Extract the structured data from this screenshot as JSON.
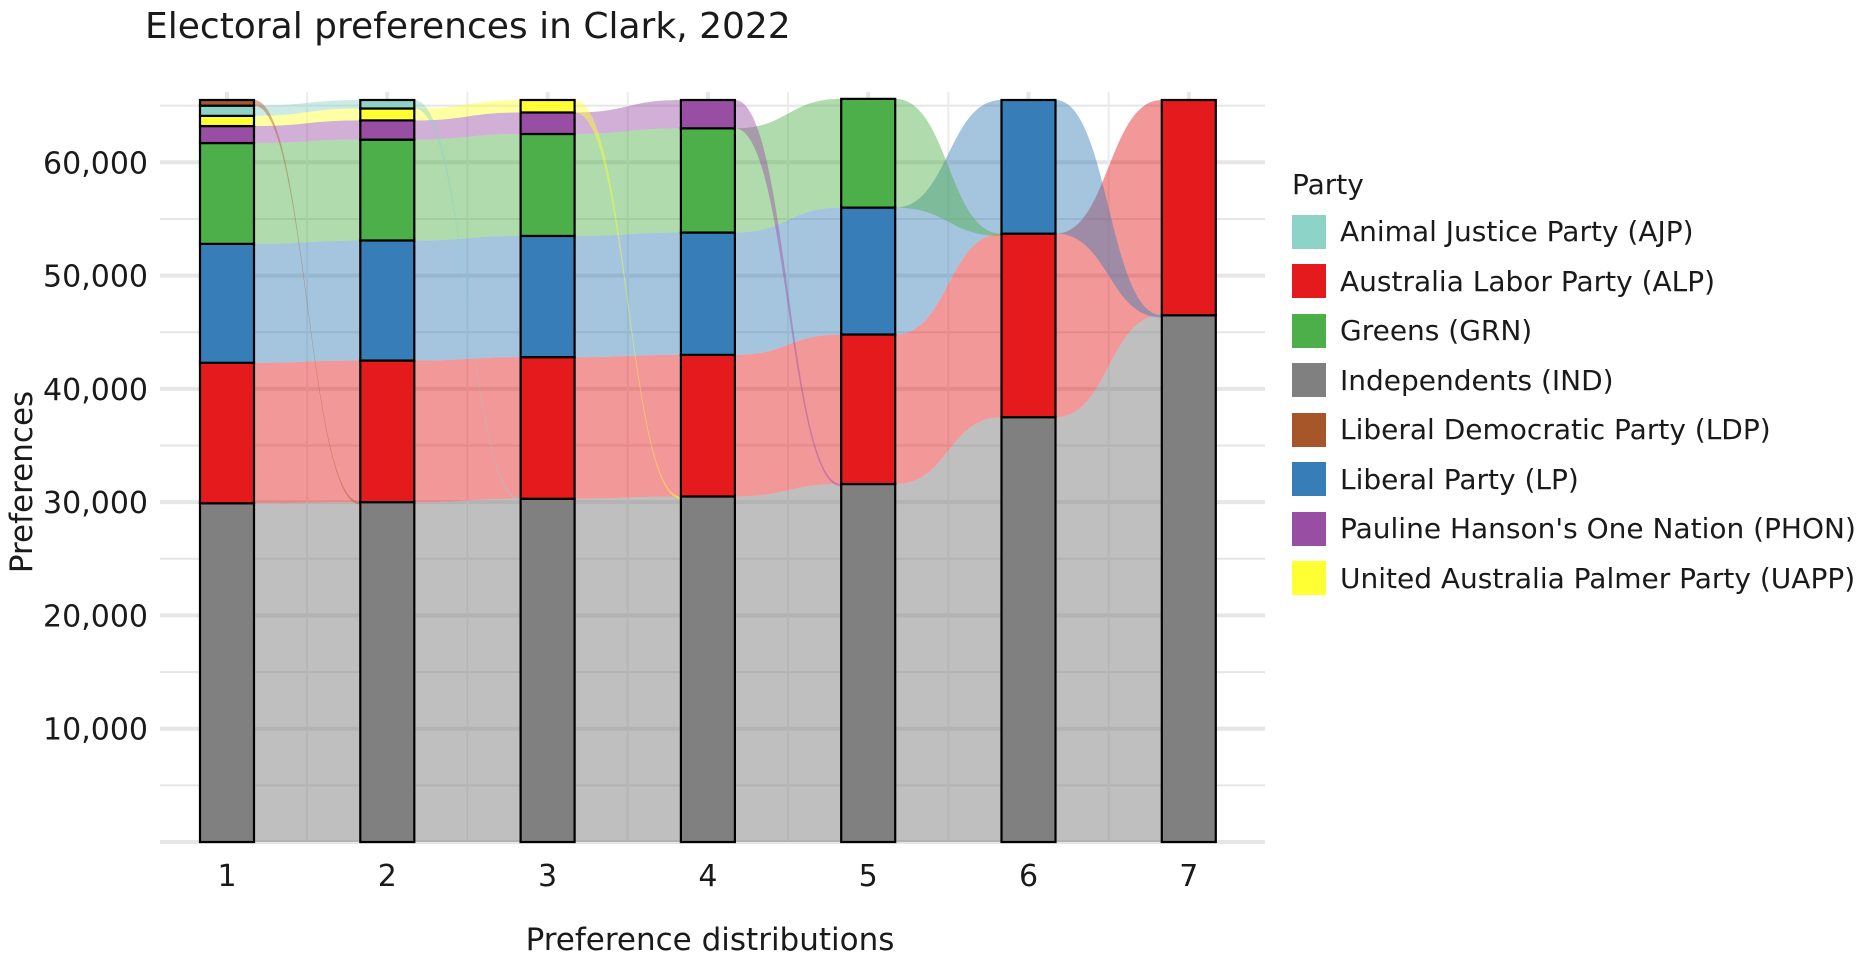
{
  "chart_data": {
    "type": "alluvial",
    "title": "Electoral preferences in Clark, 2022",
    "xlabel": "Preference distributions",
    "ylabel": "Preferences",
    "x": [
      "1",
      "2",
      "3",
      "4",
      "5",
      "6",
      "7"
    ],
    "ylim": [
      0,
      65500
    ],
    "y_ticks": [
      10000,
      20000,
      30000,
      40000,
      50000,
      60000
    ],
    "y_tick_labels": [
      "10,000",
      "20,000",
      "30,000",
      "40,000",
      "50,000",
      "60,000"
    ],
    "grid": true,
    "legend_position": "right",
    "legend_title": "Party",
    "stack_order": [
      "IND",
      "ALP",
      "LP",
      "GRN",
      "PHON",
      "UAPP",
      "AJP",
      "LDP"
    ],
    "series": [
      {
        "code": "AJP",
        "name": "Animal Justice Party (AJP)",
        "color": "#8dd3c7",
        "values": [
          900,
          750,
          0,
          0,
          0,
          0,
          0
        ]
      },
      {
        "code": "ALP",
        "name": "Australia Labor Party (ALP)",
        "color": "#e41a1c",
        "values": [
          12400,
          12500,
          12500,
          12500,
          13200,
          16200,
          19000
        ]
      },
      {
        "code": "GRN",
        "name": "Greens (GRN)",
        "color": "#4daf4a",
        "values": [
          8900,
          8900,
          9000,
          9200,
          9600,
          0,
          0
        ]
      },
      {
        "code": "IND",
        "name": "Independents (IND)",
        "color": "#808080",
        "values": [
          29900,
          30000,
          30300,
          30500,
          31600,
          37500,
          46500
        ]
      },
      {
        "code": "LDP",
        "name": "Liberal Democratic Party (LDP)",
        "color": "#a65628",
        "values": [
          500,
          0,
          0,
          0,
          0,
          0,
          0
        ]
      },
      {
        "code": "LP",
        "name": "Liberal Party (LP)",
        "color": "#377eb8",
        "values": [
          10500,
          10600,
          10700,
          10800,
          11200,
          11800,
          0
        ]
      },
      {
        "code": "PHON",
        "name": "Pauline Hanson's One Nation (PHON)",
        "color": "#984ea3",
        "values": [
          1500,
          1700,
          1900,
          2500,
          0,
          0,
          0
        ]
      },
      {
        "code": "UAPP",
        "name": "United Australia Palmer Party (UAPP)",
        "color": "#ffff33",
        "values": [
          900,
          1050,
          1100,
          0,
          0,
          0,
          0
        ]
      }
    ]
  }
}
